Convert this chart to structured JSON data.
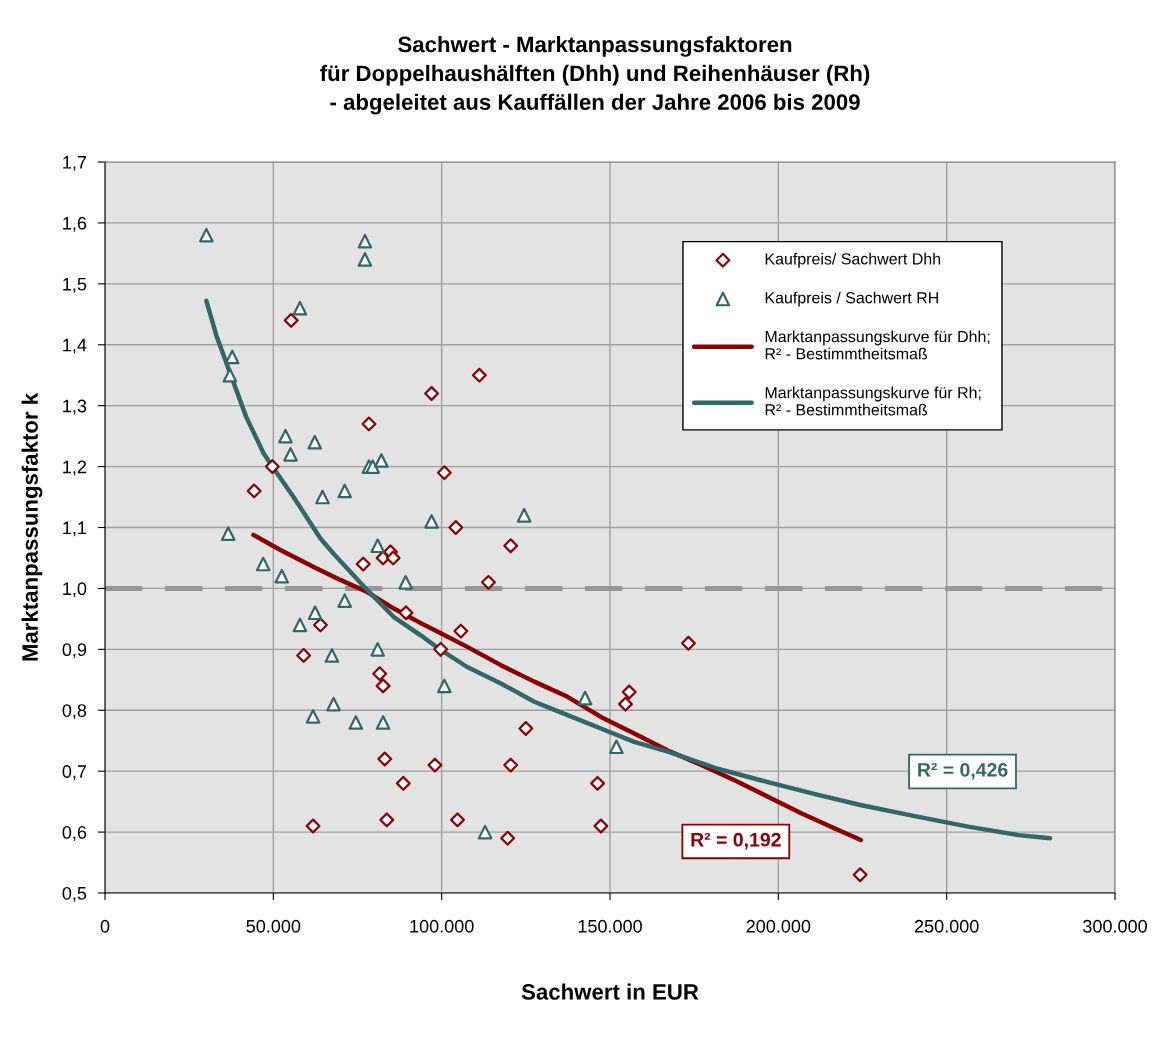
{
  "chart_data": {
    "type": "scatter",
    "title": "Sachwert - Marktanpassungsfaktoren\nfür Doppelhaushälften (Dhh) und Reihenhäuser (Rh)\n- abgeleitet aus Kauffällen der Jahre 2006 bis 2009",
    "xlabel": "Sachwert in EUR",
    "ylabel": "Marktanpassungsfaktor k",
    "xlim": [
      0,
      300000
    ],
    "ylim": [
      0.5,
      1.7
    ],
    "xticks": [
      0,
      {
        "value": 50000,
        "label": "50.000"
      },
      {
        "value": 100000,
        "label": "100.000"
      },
      {
        "value": 150000,
        "label": "150.000"
      },
      {
        "value": 200000,
        "label": "200.000"
      },
      {
        "value": 250000,
        "label": "250.000"
      },
      {
        "value": 300000,
        "label": "300.000"
      }
    ],
    "yticks": [
      {
        "value": 0.5,
        "label": "0,5"
      },
      {
        "value": 0.6,
        "label": "0,6"
      },
      {
        "value": 0.7,
        "label": "0,7"
      },
      {
        "value": 0.8,
        "label": "0,8"
      },
      {
        "value": 0.9,
        "label": "0,9"
      },
      {
        "value": 1.0,
        "label": "1,0"
      },
      {
        "value": 1.1,
        "label": "1,1"
      },
      {
        "value": 1.2,
        "label": "1,2"
      },
      {
        "value": 1.3,
        "label": "1,3"
      },
      {
        "value": 1.4,
        "label": "1,4"
      },
      {
        "value": 1.5,
        "label": "1,5"
      },
      {
        "value": 1.6,
        "label": "1,6"
      },
      {
        "value": 1.7,
        "label": "1,7"
      }
    ],
    "grid": true,
    "legend": "top right",
    "ref_lines": [
      {
        "axis": "y",
        "value": 1.0,
        "color": "#969696",
        "line_style": "dashed"
      }
    ],
    "annotations": [
      "R² = 0,192",
      "R² = 0,426"
    ],
    "series": [
      {
        "name": "Kaufpreis/ Sachwert Dhh",
        "marker": "diamond",
        "color": "#8b0000",
        "x": [
          55300,
          78400,
          49700,
          44300,
          84800,
          82600,
          85600,
          76700,
          89400,
          64000,
          59000,
          81600,
          82600,
          83100,
          88600,
          83700,
          61800,
          111200,
          97000,
          100800,
          104200,
          120500,
          113900,
          105700,
          99700,
          173300,
          155700,
          154600,
          125000,
          98000,
          120500,
          146300,
          104700,
          147300,
          119600,
          224300
        ],
        "values": [
          1.44,
          1.27,
          1.2,
          1.16,
          1.06,
          1.05,
          1.05,
          1.04,
          0.96,
          0.94,
          0.89,
          0.86,
          0.84,
          0.72,
          0.68,
          0.62,
          0.61,
          1.35,
          1.32,
          1.19,
          1.1,
          1.07,
          1.01,
          0.93,
          0.9,
          0.91,
          0.83,
          0.81,
          0.77,
          0.71,
          0.71,
          0.68,
          0.62,
          0.61,
          0.59,
          0.53
        ]
      },
      {
        "name": "Kaufpreis / Sachwert RH",
        "marker": "triangle",
        "color": "#336666",
        "x": [
          30100,
          77200,
          77200,
          57900,
          37800,
          37100,
          53600,
          62300,
          55100,
          78400,
          79500,
          82100,
          71200,
          64600,
          36600,
          97000,
          124500,
          47000,
          52500,
          81000,
          89300,
          71200,
          62400,
          57900,
          67400,
          81000,
          67900,
          61800,
          74500,
          82600,
          100800,
          142600,
          151900,
          112900
        ],
        "values": [
          1.58,
          1.57,
          1.54,
          1.46,
          1.38,
          1.35,
          1.25,
          1.24,
          1.22,
          1.2,
          1.2,
          1.21,
          1.16,
          1.15,
          1.09,
          1.11,
          1.12,
          1.04,
          1.02,
          1.07,
          1.01,
          0.98,
          0.96,
          0.94,
          0.89,
          0.9,
          0.81,
          0.79,
          0.78,
          0.78,
          0.84,
          0.82,
          0.74,
          0.6
        ]
      },
      {
        "name": "Marktanpassungskurve für Dhh;\nR² - Bestimmtheitsmaß",
        "type": "line",
        "marker": "none",
        "line_style": "solid",
        "color": "#8b0000",
        "x": [
          44100,
          52100,
          62000,
          69900,
          77900,
          85800,
          93800,
          97700,
          107600,
          117600,
          127500,
          137400,
          147300,
          157200,
          167200,
          177100,
          187000,
          196900,
          206800,
          216800,
          224500
        ],
        "values": [
          1.088,
          1.063,
          1.035,
          1.014,
          0.994,
          0.967,
          0.943,
          0.932,
          0.904,
          0.874,
          0.847,
          0.822,
          0.789,
          0.762,
          0.734,
          0.71,
          0.685,
          0.658,
          0.631,
          0.606,
          0.587
        ]
      },
      {
        "name": "Marktanpassungskurve für Rh;\nR² - Bestimmtheitsmaß",
        "type": "line",
        "marker": "none",
        "line_style": "solid",
        "color": "#336666",
        "x": [
          30100,
          33200,
          37200,
          41900,
          47100,
          49700,
          56000,
          64000,
          67900,
          76900,
          85800,
          93800,
          99700,
          107600,
          117600,
          127500,
          137400,
          147300,
          157200,
          167200,
          182000,
          196900,
          211800,
          224700,
          241600,
          256400,
          271300,
          280700
        ],
        "values": [
          1.472,
          1.413,
          1.353,
          1.282,
          1.222,
          1.2,
          1.15,
          1.082,
          1.057,
          1.003,
          0.953,
          0.923,
          0.899,
          0.871,
          0.844,
          0.814,
          0.792,
          0.77,
          0.748,
          0.732,
          0.704,
          0.682,
          0.661,
          0.644,
          0.625,
          0.609,
          0.595,
          0.59
        ]
      }
    ]
  }
}
